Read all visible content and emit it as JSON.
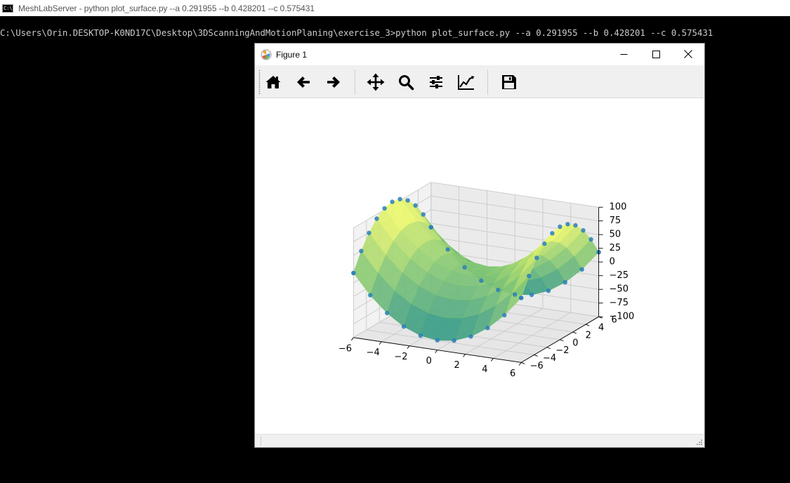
{
  "console": {
    "icon_text": "C:\\",
    "window_title": "MeshLabServer - python  plot_surface.py --a 0.291955 --b 0.428201 --c 0.575431",
    "command_line": "C:\\Users\\Orin.DESKTOP-K0ND17C\\Desktop\\3DScanningAndMotionPlaning\\exercise_3>python plot_surface.py --a 0.291955 --b 0.428201 --c 0.575431"
  },
  "figure": {
    "title": "Figure 1",
    "window_controls": [
      "minimize-icon",
      "maximize-icon",
      "close-icon"
    ],
    "toolbar": [
      {
        "name": "home",
        "icon": "home-icon"
      },
      {
        "name": "back",
        "icon": "arrow-left-icon"
      },
      {
        "name": "forward",
        "icon": "arrow-right-icon"
      },
      {
        "name": "pan",
        "icon": "move-icon"
      },
      {
        "name": "zoom",
        "icon": "magnifier-icon"
      },
      {
        "name": "configure-subplots",
        "icon": "sliders-icon"
      },
      {
        "name": "edit-axes",
        "icon": "line-chart-icon"
      },
      {
        "name": "save",
        "icon": "floppy-disk-icon"
      }
    ]
  },
  "colors": {
    "console_bg": "#000000",
    "console_text": "#cccccc",
    "surface_low": "#1f8f8a",
    "surface_mid": "#8ccb73",
    "surface_high": "#fbff6a",
    "scatter_points": "#2b7fb8"
  },
  "chart_data": {
    "type": "surface",
    "subtype": "3d-surface-with-scatter",
    "title": "",
    "xlabel": "",
    "ylabel": "",
    "zlabel": "",
    "x_ticks": [
      "−6",
      "−4",
      "−2",
      "0",
      "2",
      "4",
      "6"
    ],
    "y_ticks": [
      "−6",
      "−4",
      "−2",
      "0",
      "2",
      "4",
      "6"
    ],
    "z_ticks": [
      "100",
      "75",
      "50",
      "25",
      "0",
      "−25",
      "−50",
      "−75",
      "−100"
    ],
    "xlim": [
      -6,
      6
    ],
    "ylim": [
      -6,
      6
    ],
    "zlim": [
      -100,
      100
    ],
    "grid": true,
    "colormap": "summer",
    "surface_model": "z = x^2/a^2 - y^2/b^2 scaled (hyperbolic paraboloid, saddle)",
    "parameters": {
      "a": 0.291955,
      "b": 0.428201,
      "c": 0.575431
    },
    "z_range_plotted": [
      -87,
      100
    ]
  }
}
